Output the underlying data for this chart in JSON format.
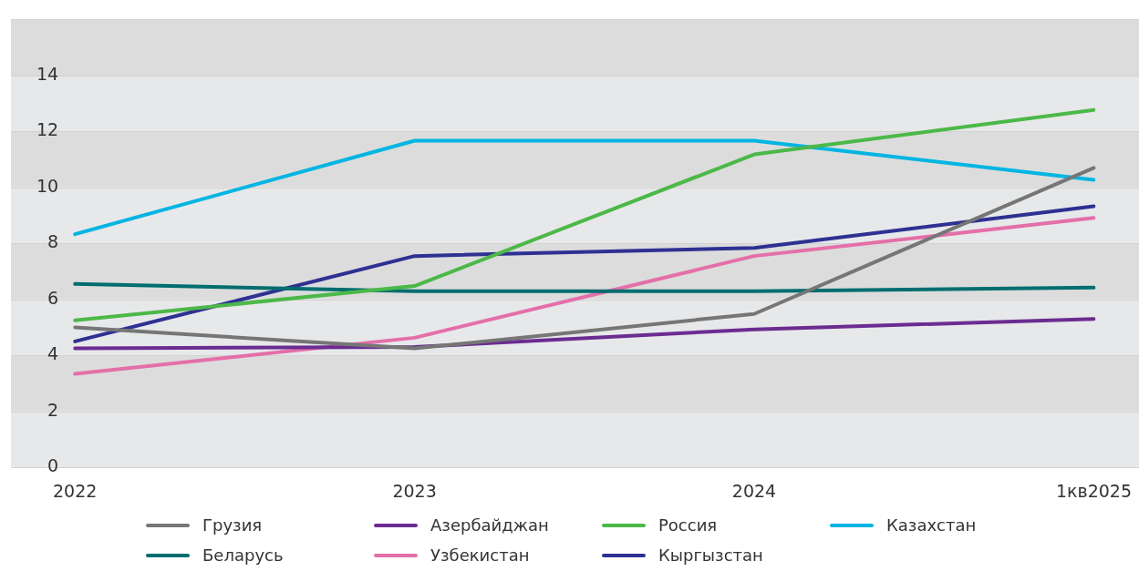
{
  "chart_data": {
    "type": "line",
    "categories": [
      "2022",
      "2023",
      "2024",
      "1кв2025"
    ],
    "series": [
      {
        "name": "Грузия",
        "color": "#767676",
        "values": [
          5.0,
          4.25,
          5.48,
          10.7
        ]
      },
      {
        "name": "Азербайджан",
        "color": "#6b2c91",
        "values": [
          4.25,
          4.3,
          4.93,
          5.3
        ]
      },
      {
        "name": "Россия",
        "color": "#4cb848",
        "values": [
          5.25,
          6.48,
          11.18,
          12.77
        ]
      },
      {
        "name": "Казахстан",
        "color": "#00b5e2",
        "values": [
          8.33,
          11.67,
          11.67,
          10.27
        ]
      },
      {
        "name": "Беларусь",
        "color": "#006d6f",
        "values": [
          6.55,
          6.29,
          6.29,
          6.42
        ]
      },
      {
        "name": "Узбекистан",
        "color": "#e46fa9",
        "values": [
          3.34,
          4.63,
          7.55,
          8.91
        ]
      },
      {
        "name": "Кыргызстан",
        "color": "#2e3192",
        "values": [
          4.5,
          7.55,
          7.84,
          9.33
        ]
      }
    ],
    "ylim": [
      0,
      16
    ],
    "yticks": [
      0,
      2,
      4,
      6,
      8,
      10,
      12,
      14
    ],
    "grid": true,
    "legend": "bottom",
    "marker": "none"
  }
}
